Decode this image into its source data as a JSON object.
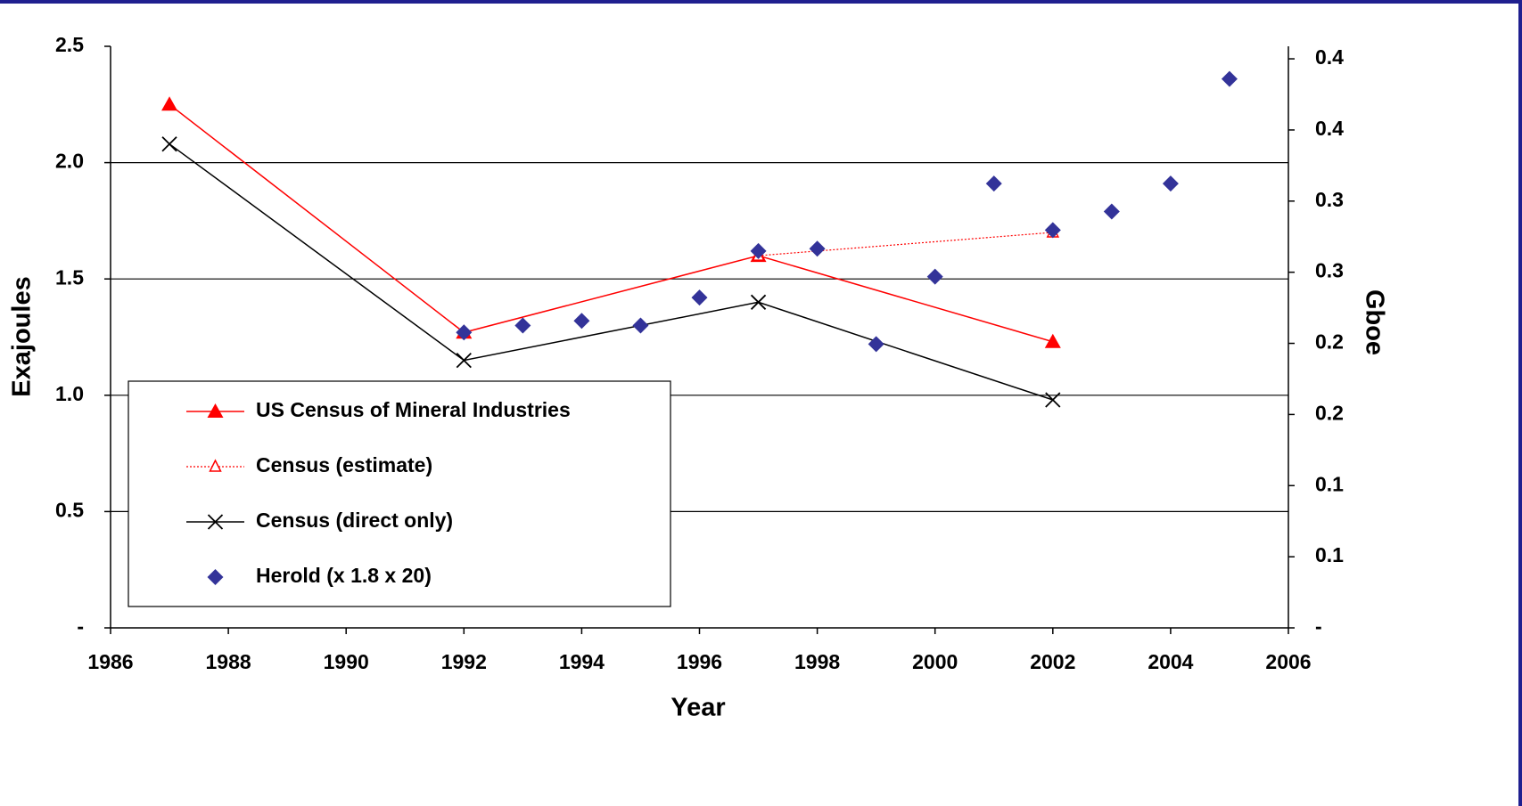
{
  "chart_data": {
    "type": "line",
    "x_label": "Year",
    "y_label": "Exajoules",
    "y2_label": "Gboe",
    "xlim": [
      1986,
      2006
    ],
    "xticks": [
      1986,
      1988,
      1990,
      1992,
      1994,
      1996,
      1998,
      2000,
      2002,
      2004,
      2006
    ],
    "ylim": [
      0,
      2.5
    ],
    "yticks": [
      {
        "value": 0,
        "label": "-"
      },
      0.5,
      {
        "value": 1,
        "label": "1.0"
      },
      1.5,
      {
        "value": 2,
        "label": "2.0"
      },
      2.5
    ],
    "y2lim": [
      0,
      0.4088
    ],
    "y2ticks": [
      {
        "value": 0,
        "label": "-"
      },
      {
        "value": 0.05,
        "label": "0.1"
      },
      {
        "value": 0.1,
        "label": "0.1"
      },
      {
        "value": 0.15,
        "label": "0.2"
      },
      {
        "value": 0.2,
        "label": "0.2"
      },
      {
        "value": 0.25,
        "label": "0.3"
      },
      {
        "value": 0.3,
        "label": "0.3"
      },
      {
        "value": 0.35,
        "label": "0.4"
      },
      {
        "value": 0.4,
        "label": "0.4"
      }
    ],
    "grid": true,
    "legend": "lower left",
    "series": [
      {
        "name": "US Census of Mineral Industries",
        "color": "#ff0000",
        "line_style": "solid",
        "marker": "triangle",
        "x": [
          1987,
          1992,
          1997,
          2002
        ],
        "values": [
          2.25,
          1.27,
          1.6,
          1.23
        ]
      },
      {
        "name": "Census (estimate)",
        "color": "#ff0000",
        "line_style": "dotted",
        "marker": "open-triangle",
        "x": [
          1997,
          2002
        ],
        "values": [
          1.6,
          1.7
        ]
      },
      {
        "name": "Census (direct only)",
        "color": "#000000",
        "line_style": "solid",
        "marker": "x",
        "x": [
          1987,
          1992,
          1997,
          2002
        ],
        "values": [
          2.08,
          1.15,
          1.4,
          0.98
        ]
      },
      {
        "name": "Herold (x 1.8 x 20)",
        "color": "#333399",
        "line_style": "none",
        "marker": "diamond",
        "x": [
          1992,
          1993,
          1994,
          1995,
          1996,
          1997,
          1998,
          1999,
          2000,
          2001,
          2002,
          2003,
          2004,
          2005
        ],
        "values": [
          1.27,
          1.3,
          1.32,
          1.3,
          1.42,
          1.62,
          1.63,
          1.22,
          1.51,
          1.91,
          1.71,
          1.79,
          1.91,
          2.36
        ]
      }
    ]
  }
}
